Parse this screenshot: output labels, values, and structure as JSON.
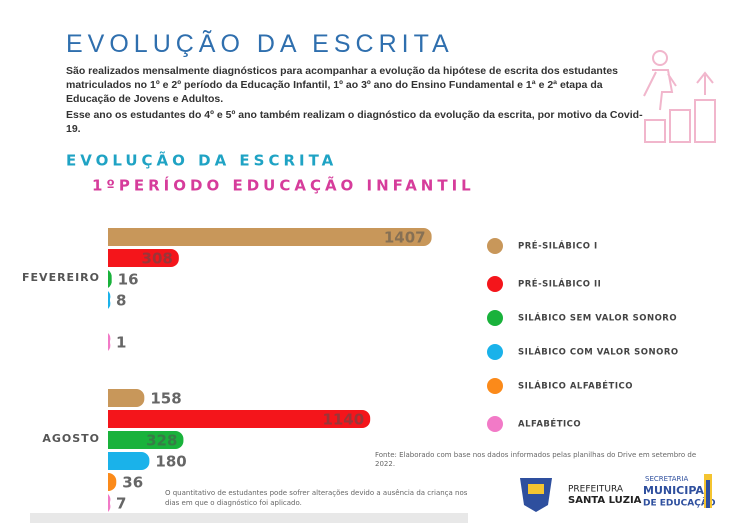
{
  "header": {
    "title": "EVOLUÇÃO DA ESCRITA",
    "paragraphs": [
      "São realizados mensalmente diagnósticos para acompanhar a evolução da hipótese de escrita dos estudantes matriculados no 1º e 2º período da Educação Infantil, 1º ao 3º ano do Ensino Fundamental e 1ª e 2ª etapa da Educação de Jovens e Adultos.",
      "Esse ano os estudantes do 4º e 5º ano também realizam o diagnóstico da evolução da escrita, por motivo da Covid-19."
    ]
  },
  "chart_data": {
    "type": "bar",
    "orientation": "horizontal",
    "title": "EVOLUÇÃO DA ESCRITA",
    "subtitle": "1ºPERÍODO EDUCAÇÃO INFANTIL",
    "categories": [
      "FEVEREIRO",
      "AGOSTO"
    ],
    "series": [
      {
        "name": "PRÉ-SILÁBICO I",
        "color": "#c8975a",
        "values": [
          1407,
          158
        ]
      },
      {
        "name": "PRÉ-SILÁBICO II",
        "color": "#f4151b",
        "values": [
          308,
          1140
        ]
      },
      {
        "name": "SILÁBICO SEM VALOR SONORO",
        "color": "#19b23b",
        "values": [
          16,
          328
        ]
      },
      {
        "name": "SILÁBICO COM VALOR SONORO",
        "color": "#1ab2ea",
        "values": [
          8,
          180
        ]
      },
      {
        "name": "SILÁBICO ALFABÉTICO",
        "color": "#fb8a1a",
        "values": [
          null,
          36
        ]
      },
      {
        "name": "ALFABÉTICO",
        "color": "#f27ac7",
        "values": [
          1,
          7
        ]
      }
    ],
    "legend": "right"
  },
  "footer": {
    "source": [
      "Fonte: Elaborado com base nos dados informados pelas planilhas do Drive em  setembro de",
      "2022."
    ],
    "note": [
      "O quantitativo de estudantes pode sofrer alterações devido a ausência da criança nos",
      "dias em que o diagnóstico foi aplicado."
    ],
    "logos": [
      "PREFEITURA",
      "SANTA LUZIA",
      "SECRETARIA",
      "MUNICIPAL",
      "DE EDUCAÇÃO"
    ]
  }
}
